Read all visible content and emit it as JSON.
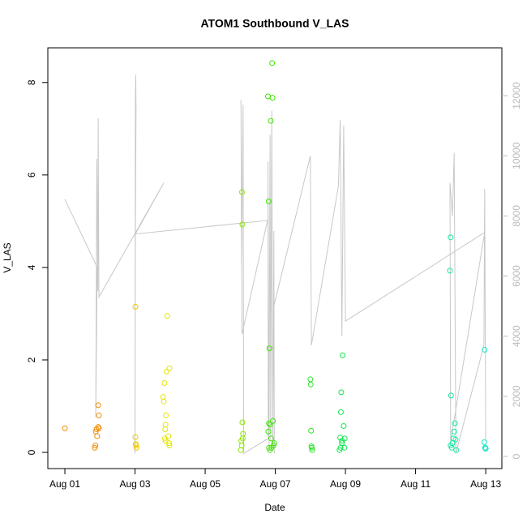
{
  "chart_data": {
    "type": "scatter",
    "title": "ATOM1 Southbound V_LAS",
    "x_label": "Date",
    "y_label": "V_LAS",
    "xlim": [
      -0.486,
      12.46
    ],
    "xticks": [
      {
        "value": 0,
        "label": "Aug 01"
      },
      {
        "value": 2,
        "label": "Aug 03"
      },
      {
        "value": 4,
        "label": "Aug 05"
      },
      {
        "value": 6,
        "label": "Aug 07"
      },
      {
        "value": 8,
        "label": "Aug 09"
      },
      {
        "value": 10,
        "label": "Aug 11"
      },
      {
        "value": 12,
        "label": "Aug 13"
      }
    ],
    "ylim": [
      -0.35,
      8.75
    ],
    "yticks": [
      0,
      2,
      4,
      6,
      8
    ],
    "y2lim": [
      -404,
      13591
    ],
    "y2ticks": [
      0,
      2000,
      4000,
      6000,
      8000,
      10000,
      12000
    ],
    "y2color": "#bbbbbb",
    "series": [
      {
        "type": "line",
        "axis": "y2",
        "color": "#c8c8c8",
        "x": [
          0,
          0.92,
          0.88,
          0.91,
          0.94,
          0.95,
          0.97,
          2.82,
          2.01,
          2.0,
          2.01,
          2.02,
          2.03,
          2.01,
          5.78,
          5.05,
          5.02,
          5.04,
          5.08,
          5.1,
          5.8,
          5.79,
          5.82,
          5.85,
          5.87,
          5.9,
          5.93,
          5.96,
          5.97,
          5.96,
          7.0,
          7.03,
          7.8,
          7.85,
          7.9,
          7.95,
          8.0,
          11.97,
          11.0,
          10.98,
          11.05,
          11.1,
          11.15,
          11.95,
          11.97,
          12.0
        ],
        "values": [
          8550,
          6300,
          1300,
          9900,
          5500,
          11250,
          5300,
          9100,
          7400,
          100,
          11900,
          12700,
          11600,
          7400,
          7850,
          4070,
          11850,
          6300,
          11700,
          100,
          600,
          9800,
          300,
          10700,
          500,
          11500,
          300,
          7500,
          100,
          5000,
          10000,
          3700,
          9000,
          11200,
          4000,
          11000,
          4500,
          7450,
          500,
          9100,
          8000,
          10100,
          100,
          3700,
          8900,
          500
        ]
      },
      {
        "type": "points",
        "color": "#f08c00",
        "x": [
          0,
          0.85,
          0.87,
          0.88,
          0.9,
          0.92,
          0.95,
          0.95,
          0.97,
          0.97
        ],
        "values": [
          0.52,
          0.1,
          0.15,
          0.45,
          0.5,
          0.35,
          0.55,
          1.02,
          0.8,
          0.52
        ]
      },
      {
        "type": "points",
        "color": "#f0c800",
        "x": [
          2.01,
          2.01,
          2.03,
          2.04,
          2.02
        ],
        "values": [
          0.33,
          3.15,
          0.15,
          0.1,
          0.18
        ]
      },
      {
        "type": "points",
        "color": "#e6e600",
        "x": [
          2.8,
          2.82,
          2.84,
          2.85,
          2.86,
          2.87,
          2.88,
          2.9,
          2.92,
          2.95,
          2.97,
          2.98,
          2.98,
          2.87
        ],
        "values": [
          1.2,
          1.1,
          1.5,
          0.3,
          0.5,
          0.6,
          0.8,
          1.75,
          2.95,
          0.35,
          0.2,
          1.82,
          0.15,
          0.25
        ]
      },
      {
        "type": "points",
        "color": "#8ce600",
        "x": [
          5.02,
          5.03,
          5.05,
          5.06,
          5.06,
          5.07,
          5.08,
          5.04
        ],
        "values": [
          0.05,
          0.25,
          5.63,
          4.93,
          0.65,
          0.3,
          0.4,
          0.15
        ]
      },
      {
        "type": "points",
        "color": "#3ce600",
        "x": [
          5.79,
          5.8,
          5.81,
          5.82,
          5.83,
          5.85,
          5.87,
          5.89,
          5.91,
          5.92,
          5.93,
          5.95,
          5.97,
          5.85,
          5.88,
          5.82
        ],
        "values": [
          7.7,
          0.45,
          5.43,
          0.63,
          2.25,
          0.05,
          7.17,
          0.1,
          8.42,
          7.67,
          0.68,
          0.15,
          0.2,
          0.6,
          0.3,
          0.1
        ]
      },
      {
        "type": "points",
        "color": "#28e628",
        "x": [
          7.0,
          7.01,
          7.02,
          7.03,
          7.04,
          7.05
        ],
        "values": [
          1.58,
          1.47,
          0.47,
          0.13,
          0.1,
          0.05
        ]
      },
      {
        "type": "points",
        "color": "#14e650",
        "x": [
          7.83,
          7.85,
          7.87,
          7.88,
          7.9,
          7.92,
          7.95,
          7.97,
          7.98,
          7.9,
          7.86
        ],
        "values": [
          0.05,
          0.32,
          0.87,
          1.3,
          0.25,
          2.1,
          0.57,
          0.1,
          0.3,
          0.2,
          0.1
        ]
      },
      {
        "type": "points",
        "color": "#14e6a0",
        "x": [
          10.98,
          11.0,
          11.01,
          11.03,
          11.05,
          11.08,
          11.1,
          11.12,
          11.14,
          11.16,
          11.0
        ],
        "values": [
          3.93,
          4.65,
          1.23,
          0.1,
          0.2,
          0.3,
          0.45,
          0.63,
          0.28,
          0.05,
          0.15
        ]
      },
      {
        "type": "points",
        "color": "#14e6c8",
        "x": [
          11.96,
          11.97,
          11.98,
          12.0,
          11.99
        ],
        "values": [
          0.22,
          2.22,
          0.1,
          0.08,
          0.1
        ]
      }
    ]
  }
}
